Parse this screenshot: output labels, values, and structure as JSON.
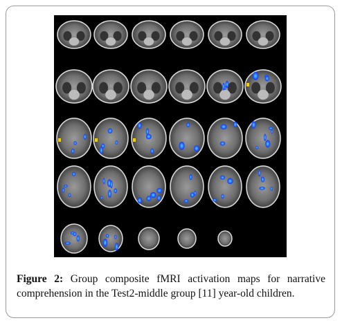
{
  "figure": {
    "label": "Figure 2:",
    "caption": "Group composite fMRI activation maps for narrative comprehension in the Test2-middle group [11] year-old children."
  }
}
